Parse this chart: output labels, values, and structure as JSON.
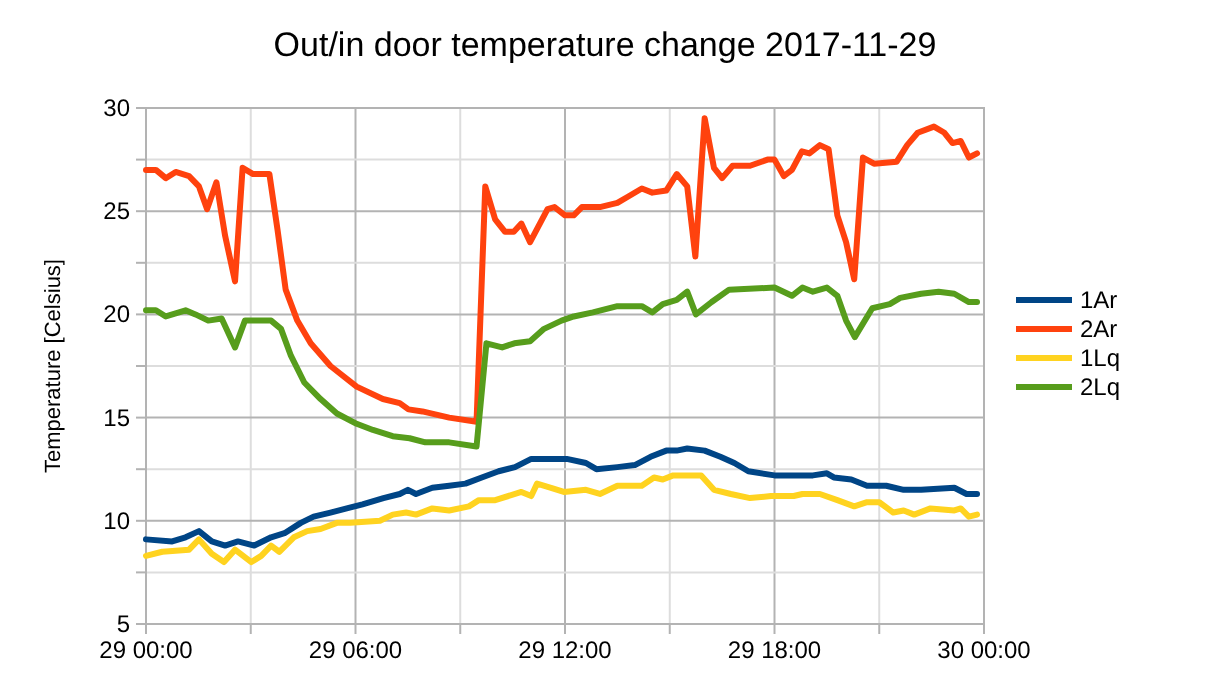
{
  "chart_data": {
    "type": "line",
    "title": "Out/in door temperature change 2017-11-29",
    "ylabel": "Temperature [Celsius]",
    "legend": "right",
    "grid": true,
    "line_style": "solid",
    "xlim": [
      "2017-11-29T00:00",
      "2017-11-30T00:00"
    ],
    "ylim": [
      5,
      30
    ],
    "xticks": [
      {
        "value": "2017-11-29T00:00",
        "label": "29 00:00"
      },
      {
        "value": "2017-11-29T03:00",
        "label": null
      },
      {
        "value": "2017-11-29T06:00",
        "label": "29 06:00"
      },
      {
        "value": "2017-11-29T09:00",
        "label": null
      },
      {
        "value": "2017-11-29T12:00",
        "label": "29 12:00"
      },
      {
        "value": "2017-11-29T15:00",
        "label": null
      },
      {
        "value": "2017-11-29T18:00",
        "label": "29 18:00"
      },
      {
        "value": "2017-11-29T21:00",
        "label": null
      },
      {
        "value": "2017-11-30T00:00",
        "label": "30 00:00"
      }
    ],
    "yticks": [
      5,
      {
        "value": 7.5,
        "label": null
      },
      10,
      {
        "value": 12.5,
        "label": null
      },
      15,
      {
        "value": 17.5,
        "label": null
      },
      20,
      {
        "value": 22.5,
        "label": null
      },
      25,
      {
        "value": 27.5,
        "label": null
      },
      30
    ],
    "series": [
      {
        "name": "1Ar",
        "color": "#004586",
        "x": [
          "2017-11-29T00:00",
          "2017-11-29T00:45",
          "2017-11-29T01:08",
          "2017-11-29T01:31",
          "2017-11-29T01:53",
          "2017-11-29T02:16",
          "2017-11-29T02:38",
          "2017-11-29T03:06",
          "2017-11-29T03:35",
          "2017-11-29T03:58",
          "2017-11-29T04:26",
          "2017-11-29T04:48",
          "2017-11-29T05:17",
          "2017-11-29T05:45",
          "2017-11-29T06:12",
          "2017-11-29T06:48",
          "2017-11-29T07:16",
          "2017-11-29T07:30",
          "2017-11-29T07:44",
          "2017-11-29T08:12",
          "2017-11-29T08:41",
          "2017-11-29T09:09",
          "2017-11-29T09:37",
          "2017-11-29T10:06",
          "2017-11-29T10:34",
          "2017-11-29T11:02",
          "2017-11-29T11:18",
          "2017-11-29T11:42",
          "2017-11-29T12:03",
          "2017-11-29T12:36",
          "2017-11-29T12:54",
          "2017-11-29T13:30",
          "2017-11-29T14:00",
          "2017-11-29T14:27",
          "2017-11-29T14:54",
          "2017-11-29T15:12",
          "2017-11-29T15:30",
          "2017-11-29T16:00",
          "2017-11-29T16:27",
          "2017-11-29T16:51",
          "2017-11-29T17:15",
          "2017-11-29T18:00",
          "2017-11-29T19:06",
          "2017-11-29T19:30",
          "2017-11-29T19:42",
          "2017-11-29T20:12",
          "2017-11-29T20:39",
          "2017-11-29T21:12",
          "2017-11-29T21:42",
          "2017-11-29T22:12",
          "2017-11-29T23:09",
          "2017-11-29T23:30",
          "2017-11-29T23:48"
        ],
        "values": [
          9.1,
          9.0,
          9.2,
          9.5,
          9.0,
          8.8,
          9.0,
          8.8,
          9.2,
          9.4,
          9.9,
          10.2,
          10.4,
          10.6,
          10.8,
          11.1,
          11.3,
          11.5,
          11.3,
          11.6,
          11.7,
          11.8,
          12.1,
          12.4,
          12.6,
          13.0,
          13.0,
          13.0,
          13.0,
          12.8,
          12.5,
          12.6,
          12.7,
          13.1,
          13.4,
          13.4,
          13.5,
          13.4,
          13.1,
          12.8,
          12.4,
          12.2,
          12.2,
          12.3,
          12.1,
          12.0,
          11.7,
          11.7,
          11.5,
          11.5,
          11.6,
          11.3,
          11.3
        ]
      },
      {
        "name": "2Ar",
        "color": "#ff420e",
        "x": [
          "2017-11-29T00:00",
          "2017-11-29T00:17",
          "2017-11-29T00:34",
          "2017-11-29T00:51",
          "2017-11-29T01:14",
          "2017-11-29T01:31",
          "2017-11-29T01:45",
          "2017-11-29T02:01",
          "2017-11-29T02:16",
          "2017-11-29T02:33",
          "2017-11-29T02:46",
          "2017-11-29T03:04",
          "2017-11-29T03:32",
          "2017-11-29T03:46",
          "2017-11-29T04:00",
          "2017-11-29T04:20",
          "2017-11-29T04:43",
          "2017-11-29T05:17",
          "2017-11-29T06:02",
          "2017-11-29T06:47",
          "2017-11-29T07:16",
          "2017-11-29T07:31",
          "2017-11-29T07:55",
          "2017-11-29T08:41",
          "2017-11-29T09:28",
          "2017-11-29T09:43",
          "2017-11-29T10:00",
          "2017-11-29T10:17",
          "2017-11-29T10:32",
          "2017-11-29T10:45",
          "2017-11-29T11:00",
          "2017-11-29T11:30",
          "2017-11-29T11:42",
          "2017-11-29T12:00",
          "2017-11-29T12:15",
          "2017-11-29T12:29",
          "2017-11-29T13:00",
          "2017-11-29T13:30",
          "2017-11-29T13:48",
          "2017-11-29T14:12",
          "2017-11-29T14:30",
          "2017-11-29T14:54",
          "2017-11-29T15:12",
          "2017-11-29T15:30",
          "2017-11-29T15:44",
          "2017-11-29T16:00",
          "2017-11-29T16:16",
          "2017-11-29T16:30",
          "2017-11-29T16:48",
          "2017-11-29T17:18",
          "2017-11-29T17:48",
          "2017-11-29T18:00",
          "2017-11-29T18:16",
          "2017-11-29T18:30",
          "2017-11-29T18:47",
          "2017-11-29T19:00",
          "2017-11-29T19:18",
          "2017-11-29T19:33",
          "2017-11-29T19:48",
          "2017-11-29T20:03",
          "2017-11-29T20:17",
          "2017-11-29T20:32",
          "2017-11-29T20:51",
          "2017-11-29T21:30",
          "2017-11-29T21:48",
          "2017-11-29T22:06",
          "2017-11-29T22:34",
          "2017-11-29T22:52",
          "2017-11-29T23:06",
          "2017-11-29T23:20",
          "2017-11-29T23:34",
          "2017-11-29T23:48"
        ],
        "values": [
          27.0,
          27.0,
          26.6,
          26.9,
          26.7,
          26.2,
          25.1,
          26.4,
          23.8,
          21.6,
          27.1,
          26.8,
          26.8,
          24.1,
          21.2,
          19.7,
          18.6,
          17.5,
          16.5,
          15.9,
          15.7,
          15.4,
          15.3,
          15.0,
          14.8,
          26.2,
          24.6,
          24.0,
          24.0,
          24.4,
          23.5,
          25.1,
          25.2,
          24.8,
          24.8,
          25.2,
          25.2,
          25.4,
          25.7,
          26.1,
          25.9,
          26.0,
          26.8,
          26.2,
          22.8,
          29.5,
          27.1,
          26.6,
          27.2,
          27.2,
          27.5,
          27.5,
          26.7,
          27.0,
          27.9,
          27.8,
          28.2,
          28.0,
          24.8,
          23.5,
          21.7,
          27.6,
          27.3,
          27.4,
          28.2,
          28.8,
          29.1,
          28.8,
          28.3,
          28.4,
          27.6,
          27.8
        ]
      },
      {
        "name": "1Lq",
        "color": "#ffd320",
        "x": [
          "2017-11-29T00:00",
          "2017-11-29T00:28",
          "2017-11-29T01:14",
          "2017-11-29T01:31",
          "2017-11-29T01:53",
          "2017-11-29T02:14",
          "2017-11-29T02:33",
          "2017-11-29T03:01",
          "2017-11-29T03:18",
          "2017-11-29T03:35",
          "2017-11-29T03:49",
          "2017-11-29T04:14",
          "2017-11-29T04:37",
          "2017-11-29T05:00",
          "2017-11-29T05:28",
          "2017-11-29T05:51",
          "2017-11-29T06:42",
          "2017-11-29T07:04",
          "2017-11-29T07:27",
          "2017-11-29T07:44",
          "2017-11-29T08:12",
          "2017-11-29T08:41",
          "2017-11-29T09:15",
          "2017-11-29T09:32",
          "2017-11-29T10:00",
          "2017-11-29T10:45",
          "2017-11-29T11:02",
          "2017-11-29T11:12",
          "2017-11-29T11:36",
          "2017-11-29T11:58",
          "2017-11-29T12:36",
          "2017-11-29T13:00",
          "2017-11-29T13:30",
          "2017-11-29T14:12",
          "2017-11-29T14:33",
          "2017-11-29T14:48",
          "2017-11-29T15:06",
          "2017-11-29T15:54",
          "2017-11-29T16:16",
          "2017-11-29T16:45",
          "2017-11-29T17:18",
          "2017-11-29T17:54",
          "2017-11-29T18:33",
          "2017-11-29T18:48",
          "2017-11-29T19:18",
          "2017-11-29T19:48",
          "2017-11-29T20:17",
          "2017-11-29T20:39",
          "2017-11-29T21:00",
          "2017-11-29T21:24",
          "2017-11-29T21:42",
          "2017-11-29T22:00",
          "2017-11-29T22:28",
          "2017-11-29T23:09",
          "2017-11-29T23:20",
          "2017-11-29T23:34",
          "2017-11-29T23:48"
        ],
        "values": [
          8.3,
          8.5,
          8.6,
          9.1,
          8.4,
          8.0,
          8.6,
          8.0,
          8.3,
          8.8,
          8.5,
          9.2,
          9.5,
          9.6,
          9.9,
          9.9,
          10.0,
          10.3,
          10.4,
          10.3,
          10.6,
          10.5,
          10.7,
          11.0,
          11.0,
          11.4,
          11.2,
          11.8,
          11.6,
          11.4,
          11.5,
          11.3,
          11.7,
          11.7,
          12.1,
          12.0,
          12.2,
          12.2,
          11.5,
          11.3,
          11.1,
          11.2,
          11.2,
          11.3,
          11.3,
          11.0,
          10.7,
          10.9,
          10.9,
          10.4,
          10.5,
          10.3,
          10.6,
          10.5,
          10.6,
          10.2,
          10.3
        ]
      },
      {
        "name": "2Lq",
        "color": "#579d1c",
        "x": [
          "2017-11-29T00:00",
          "2017-11-29T00:17",
          "2017-11-29T00:34",
          "2017-11-29T01:08",
          "2017-11-29T01:25",
          "2017-11-29T01:47",
          "2017-11-29T02:10",
          "2017-11-29T02:33",
          "2017-11-29T02:50",
          "2017-11-29T03:35",
          "2017-11-29T03:52",
          "2017-11-29T04:09",
          "2017-11-29T04:32",
          "2017-11-29T05:00",
          "2017-11-29T05:28",
          "2017-11-29T06:02",
          "2017-11-29T06:30",
          "2017-11-29T07:04",
          "2017-11-29T07:33",
          "2017-11-29T08:00",
          "2017-11-29T08:41",
          "2017-11-29T09:28",
          "2017-11-29T09:45",
          "2017-11-29T10:12",
          "2017-11-29T10:33",
          "2017-11-29T11:00",
          "2017-11-29T11:24",
          "2017-11-29T11:54",
          "2017-11-29T12:15",
          "2017-11-29T12:48",
          "2017-11-29T13:30",
          "2017-11-29T14:12",
          "2017-11-29T14:30",
          "2017-11-29T14:48",
          "2017-11-29T15:12",
          "2017-11-29T15:30",
          "2017-11-29T15:45",
          "2017-11-29T16:12",
          "2017-11-29T16:42",
          "2017-11-29T18:00",
          "2017-11-29T18:30",
          "2017-11-29T18:48",
          "2017-11-29T19:06",
          "2017-11-29T19:30",
          "2017-11-29T19:48",
          "2017-11-29T20:03",
          "2017-11-29T20:18",
          "2017-11-29T20:48",
          "2017-11-29T21:18",
          "2017-11-29T21:36",
          "2017-11-29T22:12",
          "2017-11-29T22:42",
          "2017-11-29T23:09",
          "2017-11-29T23:34",
          "2017-11-29T23:48"
        ],
        "values": [
          20.2,
          20.2,
          19.9,
          20.2,
          20.0,
          19.7,
          19.8,
          18.4,
          19.7,
          19.7,
          19.3,
          18.0,
          16.7,
          15.9,
          15.2,
          14.7,
          14.4,
          14.1,
          14.0,
          13.8,
          13.8,
          13.6,
          18.6,
          18.4,
          18.6,
          18.7,
          19.3,
          19.7,
          19.9,
          20.1,
          20.4,
          20.4,
          20.1,
          20.5,
          20.7,
          21.1,
          20.0,
          20.6,
          21.2,
          21.3,
          20.9,
          21.3,
          21.1,
          21.3,
          20.9,
          19.7,
          18.9,
          20.3,
          20.5,
          20.8,
          21.0,
          21.1,
          21.0,
          20.6,
          20.6
        ]
      }
    ]
  }
}
